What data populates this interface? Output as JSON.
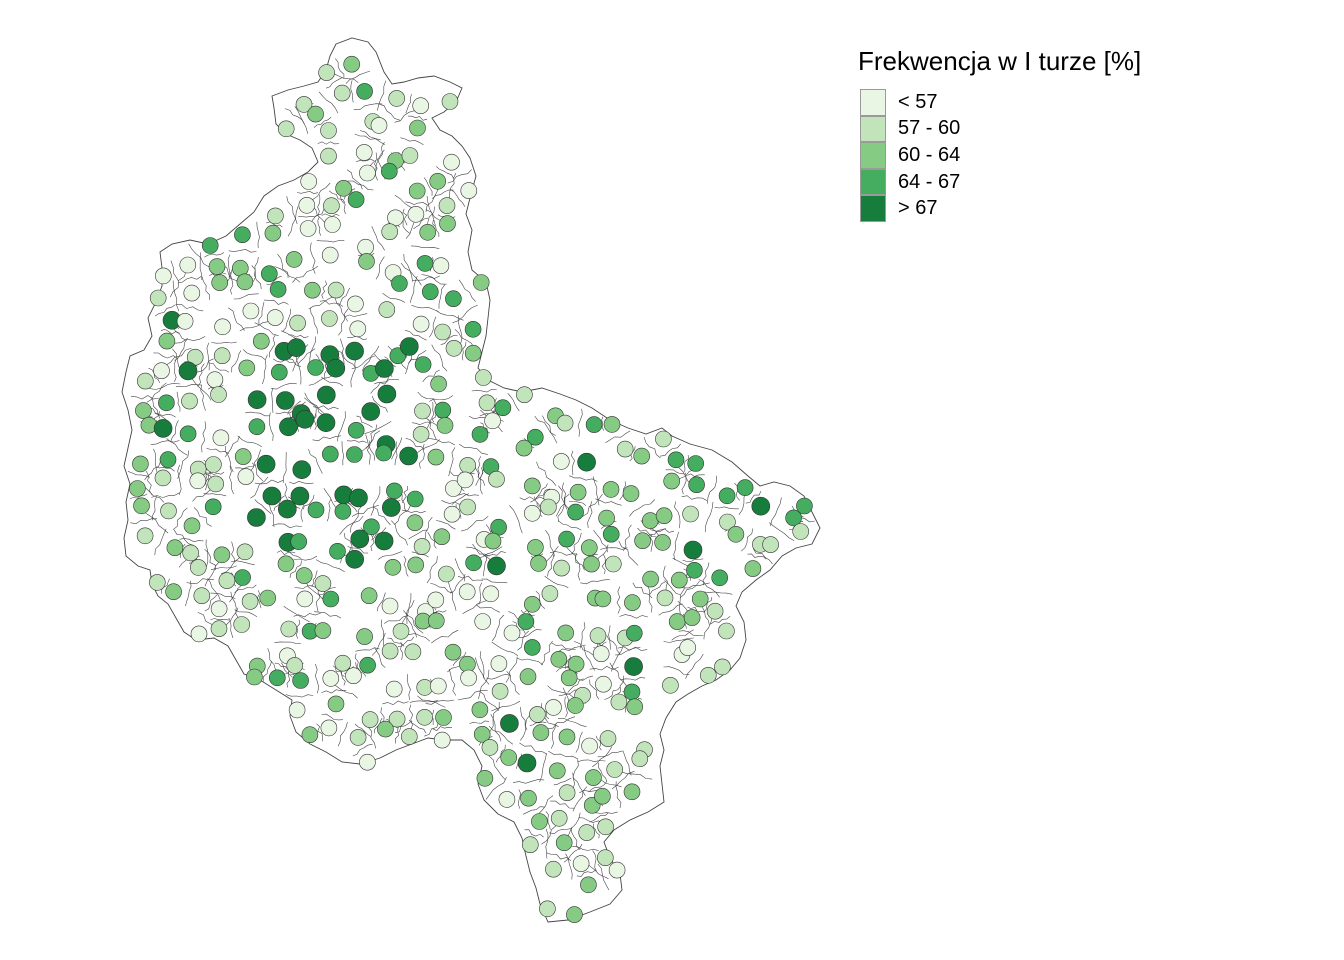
{
  "legend": {
    "title": "Frekwencja w I turze [%]",
    "classes": [
      {
        "label": "< 57",
        "color": "#e8f6e3"
      },
      {
        "label": "57 - 60",
        "color": "#c2e4bb"
      },
      {
        "label": "60 - 64",
        "color": "#86cb84"
      },
      {
        "label": "64 - 67",
        "color": "#45ad5f"
      },
      {
        "label": "> 67",
        "color": "#177d3c"
      }
    ]
  },
  "colors": {
    "region_fill": "#ffffff",
    "boundary": "#444444",
    "marker_stroke": "#333333"
  }
}
